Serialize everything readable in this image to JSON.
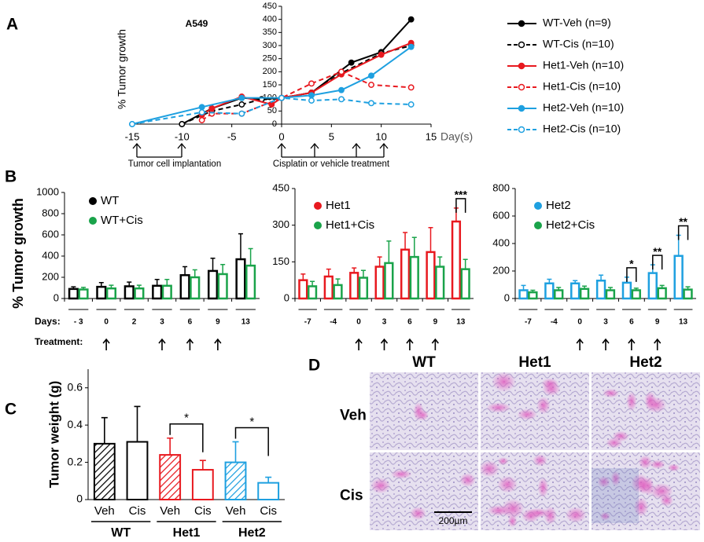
{
  "panel_labels": [
    "A",
    "B",
    "C",
    "D"
  ],
  "chart_data": [
    {
      "type": "line",
      "title": "A549",
      "ylabel": "% Tumor growth",
      "xlabel": "Day(s)",
      "annotations": [
        "Tumor cell implantation",
        "Cisplatin or vehicle treatment"
      ],
      "xlim": [
        -15,
        15
      ],
      "xticks": [
        -15,
        -10,
        -5,
        0,
        5,
        10,
        15
      ],
      "ylim": [
        0,
        450
      ],
      "yticks": [
        0,
        50,
        100,
        150,
        200,
        250,
        300,
        350,
        400,
        450
      ],
      "legend": "right",
      "series": [
        {
          "name": "WT-Veh (n=9)",
          "color": "#000000",
          "style": "solid",
          "marker": "filled",
          "x": [
            -10,
            -7,
            -4,
            -2,
            0,
            3,
            7,
            10,
            13
          ],
          "values": [
            0,
            60,
            100,
            95,
            100,
            120,
            235,
            275,
            400
          ]
        },
        {
          "name": "WT-Cis (n=10)",
          "color": "#000000",
          "style": "dashed",
          "marker": "open",
          "x": [
            -10,
            -7,
            -4,
            -2,
            0,
            3,
            6,
            10,
            13
          ],
          "values": [
            0,
            50,
            75,
            95,
            100,
            120,
            195,
            270,
            300
          ]
        },
        {
          "name": "Het1-Veh (n=10)",
          "color": "#e8191f",
          "style": "solid",
          "marker": "filled",
          "x": [
            -8,
            -7,
            -4,
            -1,
            0,
            3,
            6,
            10,
            13
          ],
          "values": [
            35,
            60,
            105,
            75,
            100,
            120,
            190,
            265,
            310
          ]
        },
        {
          "name": "Het1-Cis (n=10)",
          "color": "#e8191f",
          "style": "dashed",
          "marker": "open",
          "x": [
            -8,
            -7,
            -4,
            0,
            3,
            6,
            9,
            13
          ],
          "values": [
            15,
            40,
            40,
            100,
            155,
            200,
            150,
            140
          ]
        },
        {
          "name": "Het2-Veh (n=10)",
          "color": "#1ea0e0",
          "style": "solid",
          "marker": "filled",
          "x": [
            -15,
            -8,
            -4,
            0,
            3,
            6,
            9,
            13
          ],
          "values": [
            0,
            65,
            100,
            100,
            110,
            130,
            185,
            295
          ]
        },
        {
          "name": "Het2-Cis (n=10)",
          "color": "#1ea0e0",
          "style": "dashed",
          "marker": "open",
          "x": [
            -15,
            -8,
            -4,
            0,
            3,
            6,
            9,
            13
          ],
          "values": [
            0,
            45,
            40,
            100,
            90,
            95,
            80,
            75
          ]
        }
      ]
    },
    {
      "type": "bar",
      "ylabel": "% Tumor growth",
      "xlabel": "Days:",
      "row_label": "Treatment:",
      "categories": [
        "- 3",
        "0",
        "2",
        "3",
        "6",
        "9",
        "13"
      ],
      "ylim": [
        0,
        1000
      ],
      "yticks": [
        0,
        200,
        400,
        600,
        800,
        1000
      ],
      "series": [
        {
          "name": "WT",
          "color": "#000000",
          "values": [
            90,
            110,
            115,
            120,
            220,
            260,
            370
          ],
          "errors": [
            20,
            40,
            40,
            60,
            80,
            120,
            240
          ]
        },
        {
          "name": "WT+Cis",
          "color": "#1aa34a",
          "values": [
            85,
            95,
            95,
            120,
            200,
            230,
            310
          ],
          "errors": [
            20,
            30,
            30,
            60,
            70,
            90,
            160
          ]
        }
      ],
      "annotations": []
    },
    {
      "type": "bar",
      "categories": [
        "-7",
        "-4",
        "0",
        "3",
        "6",
        "9",
        "13"
      ],
      "ylim": [
        0,
        450
      ],
      "yticks": [
        0,
        150,
        300,
        450
      ],
      "series": [
        {
          "name": "Het1",
          "color": "#e8191f",
          "values": [
            75,
            90,
            105,
            130,
            200,
            190,
            315
          ],
          "errors": [
            25,
            30,
            20,
            40,
            70,
            100,
            55
          ]
        },
        {
          "name": "Het1+Cis",
          "color": "#1aa34a",
          "values": [
            50,
            55,
            85,
            145,
            170,
            130,
            120
          ],
          "errors": [
            20,
            25,
            30,
            90,
            80,
            40,
            40
          ]
        }
      ],
      "annotations": [
        {
          "text": "***",
          "category": "13"
        }
      ]
    },
    {
      "type": "bar",
      "categories": [
        "-7",
        "-4",
        "0",
        "3",
        "6",
        "9",
        "13"
      ],
      "ylim": [
        0,
        800
      ],
      "yticks": [
        0,
        200,
        400,
        600,
        800
      ],
      "series": [
        {
          "name": "Het2",
          "color": "#1ea0e0",
          "values": [
            60,
            110,
            110,
            130,
            115,
            185,
            310
          ],
          "errors": [
            35,
            30,
            20,
            40,
            40,
            60,
            150
          ]
        },
        {
          "name": "Het2+Cis",
          "color": "#1aa34a",
          "values": [
            45,
            60,
            70,
            60,
            60,
            75,
            65
          ],
          "errors": [
            15,
            20,
            20,
            20,
            15,
            20,
            20
          ]
        }
      ],
      "annotations": [
        {
          "text": "*",
          "category": "6"
        },
        {
          "text": "**",
          "category": "9"
        },
        {
          "text": "**",
          "category": "13"
        }
      ]
    },
    {
      "type": "groupedbar",
      "ylabel": "Tumor weight (g)",
      "categories": [
        "Veh",
        "Cis",
        "Veh",
        "Cis",
        "Veh",
        "Cis"
      ],
      "groups": [
        "WT",
        "Het1",
        "Het2"
      ],
      "values": [
        0.3,
        0.31,
        0.24,
        0.16,
        0.2,
        0.09
      ],
      "errors": [
        0.14,
        0.19,
        0.09,
        0.05,
        0.11,
        0.03
      ],
      "colors": [
        "#000000",
        "#000000",
        "#e8191f",
        "#e8191f",
        "#1ea0e0",
        "#1ea0e0"
      ],
      "hatch": [
        true,
        false,
        true,
        false,
        true,
        false
      ],
      "ylim": [
        0,
        0.7
      ],
      "yticks": [
        0,
        0.2,
        0.4,
        0.6
      ],
      "annotations": [
        {
          "text": "*",
          "group": "Het1"
        },
        {
          "text": "*",
          "group": "Het2"
        }
      ]
    }
  ],
  "histology": {
    "columns": [
      "WT",
      "Het1",
      "Het2"
    ],
    "rows": [
      "Veh",
      "Cis"
    ],
    "scale": "200µm"
  }
}
